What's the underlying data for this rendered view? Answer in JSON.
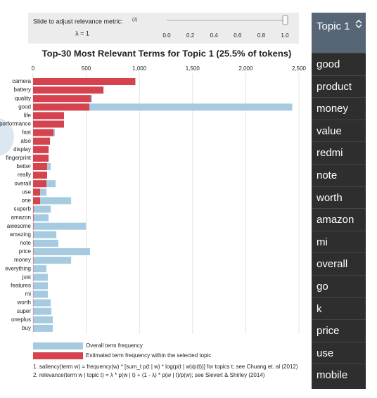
{
  "slider": {
    "label": "Slide to adjust relevance metric:",
    "note_ref": "(2)",
    "lambda_label": "λ = 1",
    "ticks": [
      "0.0",
      "0.2",
      "0.4",
      "0.6",
      "0.8",
      "1.0"
    ]
  },
  "chart_data": {
    "type": "bar",
    "orientation": "horizontal",
    "title": "Top-30 Most Relevant Terms for Topic 1 (25.5% of tokens)",
    "categories": [
      "camera",
      "battery",
      "quality",
      "good",
      "life",
      "performance",
      "fast",
      "also",
      "display",
      "fingerprint",
      "better",
      "really",
      "overall",
      "use",
      "one",
      "superb",
      "amazon",
      "awesome",
      "amazing",
      "note",
      "price",
      "money",
      "everything",
      "just",
      "features",
      "mi",
      "worth",
      "super",
      "oneplus",
      "buy"
    ],
    "series": [
      {
        "name": "Overall term frequency",
        "color": "#a6cbe0",
        "values": [
          965,
          662,
          556,
          2437,
          291,
          291,
          205,
          159,
          146,
          146,
          166,
          132,
          212,
          126,
          358,
          166,
          146,
          497,
          219,
          238,
          536,
          358,
          126,
          139,
          139,
          139,
          166,
          172,
          185,
          185
        ]
      },
      {
        "name": "Estimated term frequency within the selected topic",
        "color": "#d6434e",
        "values": [
          960,
          662,
          543,
          530,
          291,
          291,
          192,
          159,
          146,
          146,
          132,
          132,
          126,
          66,
          66,
          5,
          5,
          4,
          3,
          3,
          3,
          3,
          2,
          2,
          2,
          2,
          2,
          2,
          2,
          2
        ]
      }
    ],
    "xlim": [
      0,
      2500
    ],
    "xticks": [
      0,
      500,
      {
        "value": 1000,
        "label": "1,000"
      },
      {
        "value": 1500,
        "label": "1,500"
      },
      {
        "value": 2000,
        "label": "2,000"
      },
      {
        "value": 2500,
        "label": "2,500"
      }
    ],
    "grid": true,
    "footnotes": [
      "1. saliency(term w) = frequency(w) * [sum_t p(t | w) * log(p(t | w)/p(t))] for topics t; see Chuang et. al (2012)",
      "2. relevance(term w | topic t) = λ * p(w | t) + (1 - λ) * p(w | t)/p(w); see Sievert & Shirley (2014)"
    ]
  },
  "topic_menu": {
    "selected": "Topic 1",
    "items": [
      "good",
      "product",
      "money",
      "value",
      "redmi",
      "note",
      "worth",
      "amazon",
      "mi",
      "overall",
      "go",
      "k",
      "price",
      "use",
      "mobile"
    ]
  }
}
